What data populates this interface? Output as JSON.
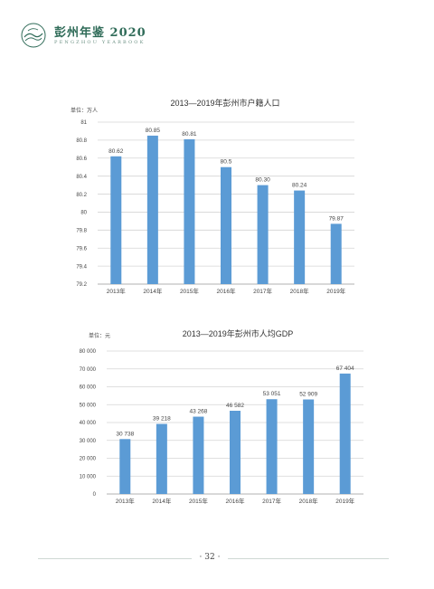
{
  "header": {
    "title": "彭州年鉴 2020",
    "subtitle": "PENGZHOU YEARBOOK",
    "logo_icon": "wave-emblem-icon",
    "accent": "#2f6b58"
  },
  "page_number": "· 32 ·",
  "chart_data": [
    {
      "type": "bar",
      "title": "2013—2019年彭州市户籍人口",
      "unit": "单位：万人",
      "categories": [
        "2013年",
        "2014年",
        "2015年",
        "2016年",
        "2017年",
        "2018年",
        "2019年"
      ],
      "values": [
        80.62,
        80.85,
        80.81,
        80.5,
        80.3,
        80.24,
        79.87
      ],
      "value_labels": [
        "80.62",
        "80.85",
        "80.81",
        "80.5",
        "80.30",
        "80.24",
        "79.87"
      ],
      "yticks": [
        "79.2",
        "79.4",
        "79.6",
        "79.8",
        "80",
        "80.2",
        "80.4",
        "80.6",
        "80.8",
        "81"
      ],
      "ylim": [
        79.2,
        81
      ],
      "grid": true,
      "bar_color": "#5b9bd5"
    },
    {
      "type": "bar",
      "title": "2013—2019年彭州市人均GDP",
      "unit": "单位：元",
      "categories": [
        "2013年",
        "2014年",
        "2015年",
        "2016年",
        "2017年",
        "2018年",
        "2019年"
      ],
      "values": [
        30738,
        39218,
        43268,
        46582,
        53051,
        52909,
        67404
      ],
      "value_labels": [
        "30 738",
        "39 218",
        "43 268",
        "46 582",
        "53 051",
        "52 909",
        "67 404"
      ],
      "yticks": [
        "0",
        "10 000",
        "20 000",
        "30 000",
        "40 000",
        "50 000",
        "60 000",
        "70 000",
        "80 000"
      ],
      "ylim": [
        0,
        80000
      ],
      "grid": true,
      "bar_color": "#5b9bd5"
    }
  ]
}
